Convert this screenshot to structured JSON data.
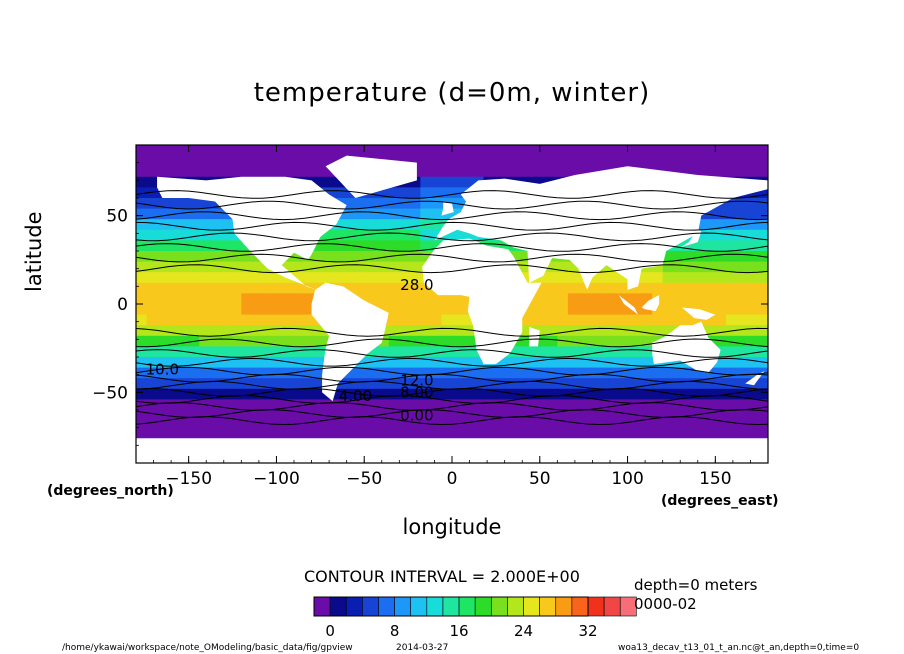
{
  "chart_data": {
    "type": "heatmap",
    "title": "temperature (d=0m, winter)",
    "xlabel": "longitude",
    "ylabel": "latitude",
    "x_unit": "(degrees_east)",
    "y_unit": "(degrees_north)",
    "x_ticks": [
      -150,
      -100,
      -50,
      0,
      50,
      100,
      150
    ],
    "y_ticks": [
      50,
      0,
      -50
    ],
    "x_tick_labels": [
      "−150",
      "−100",
      "−50",
      "0",
      "50",
      "100",
      "150"
    ],
    "y_tick_labels": [
      "50",
      "0",
      "−50"
    ],
    "xlim": [
      -180,
      180
    ],
    "ylim": [
      -90,
      90
    ],
    "contour_labels": [
      {
        "text": "28.0",
        "lon": -20,
        "lat": 8
      },
      {
        "text": "10.0",
        "lon": -165,
        "lat": -40
      },
      {
        "text": "12.0",
        "lon": -20,
        "lat": -46
      },
      {
        "text": "8.00",
        "lon": -20,
        "lat": -53
      },
      {
        "text": "4.00",
        "lon": -55,
        "lat": -55
      },
      {
        "text": "0.00",
        "lon": -20,
        "lat": -66
      }
    ],
    "contour_interval_label": "CONTOUR INTERVAL = 2.000E+00",
    "colorbar": {
      "min": -2,
      "max": 32,
      "step": 2,
      "tick_values": [
        0,
        8,
        16,
        24,
        32
      ],
      "tick_labels": [
        "0",
        "8",
        "16",
        "24",
        "32"
      ],
      "colors": [
        "#6a0da8",
        "#0a0a8c",
        "#0b1eb4",
        "#1844d6",
        "#1c6ef0",
        "#1e98f8",
        "#1ec2f2",
        "#18dcd8",
        "#1ee6a0",
        "#1ee664",
        "#2cdc28",
        "#78e01c",
        "#b4e61c",
        "#e6e61e",
        "#f8c81c",
        "#f89c14",
        "#f8641c",
        "#f0321c",
        "#f04646",
        "#f86e78",
        "#f89c9c"
      ]
    }
  },
  "annotations": {
    "depth": "depth=0 meters",
    "time": "0000-02"
  },
  "footer": {
    "path": "/home/ykawai/workspace/note_OModeling/basic_data/fig/gpview",
    "date": "2014-03-27",
    "source": "woa13_decav_t13_01_t_an.nc@t_an,depth=0,time=0"
  }
}
